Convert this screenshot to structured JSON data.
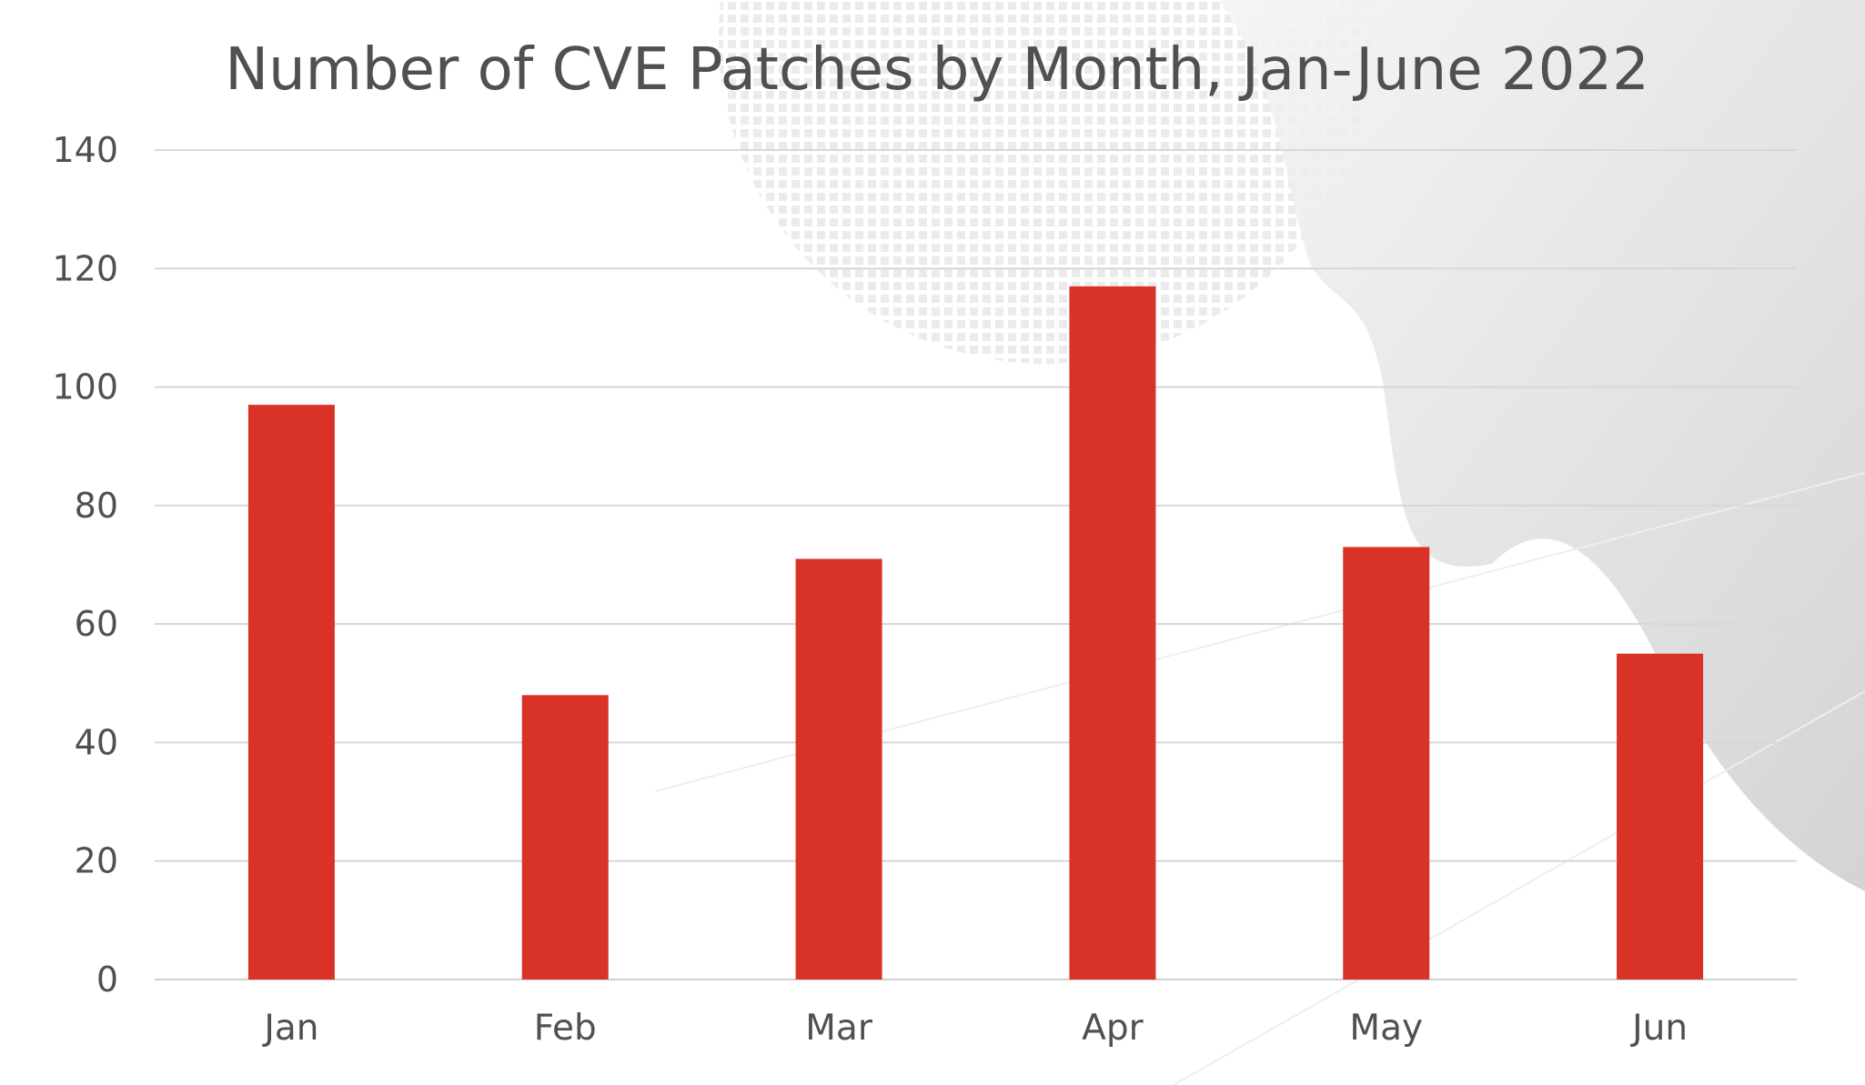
{
  "chart_data": {
    "type": "bar",
    "title": "Number of CVE Patches by Month, Jan-June 2022",
    "xlabel": "",
    "ylabel": "",
    "categories": [
      "Jan",
      "Feb",
      "Mar",
      "Apr",
      "May",
      "Jun"
    ],
    "values": [
      97,
      48,
      71,
      117,
      73,
      55
    ],
    "ylim": [
      0,
      140
    ],
    "yticks": [
      0,
      20,
      40,
      60,
      80,
      100,
      120,
      140
    ],
    "grid": true,
    "legend": "none",
    "colors": {
      "bar": "#d93327",
      "text": "#505050",
      "grid": "#d7d7d7",
      "background_decor": "#e6e6e6"
    }
  }
}
